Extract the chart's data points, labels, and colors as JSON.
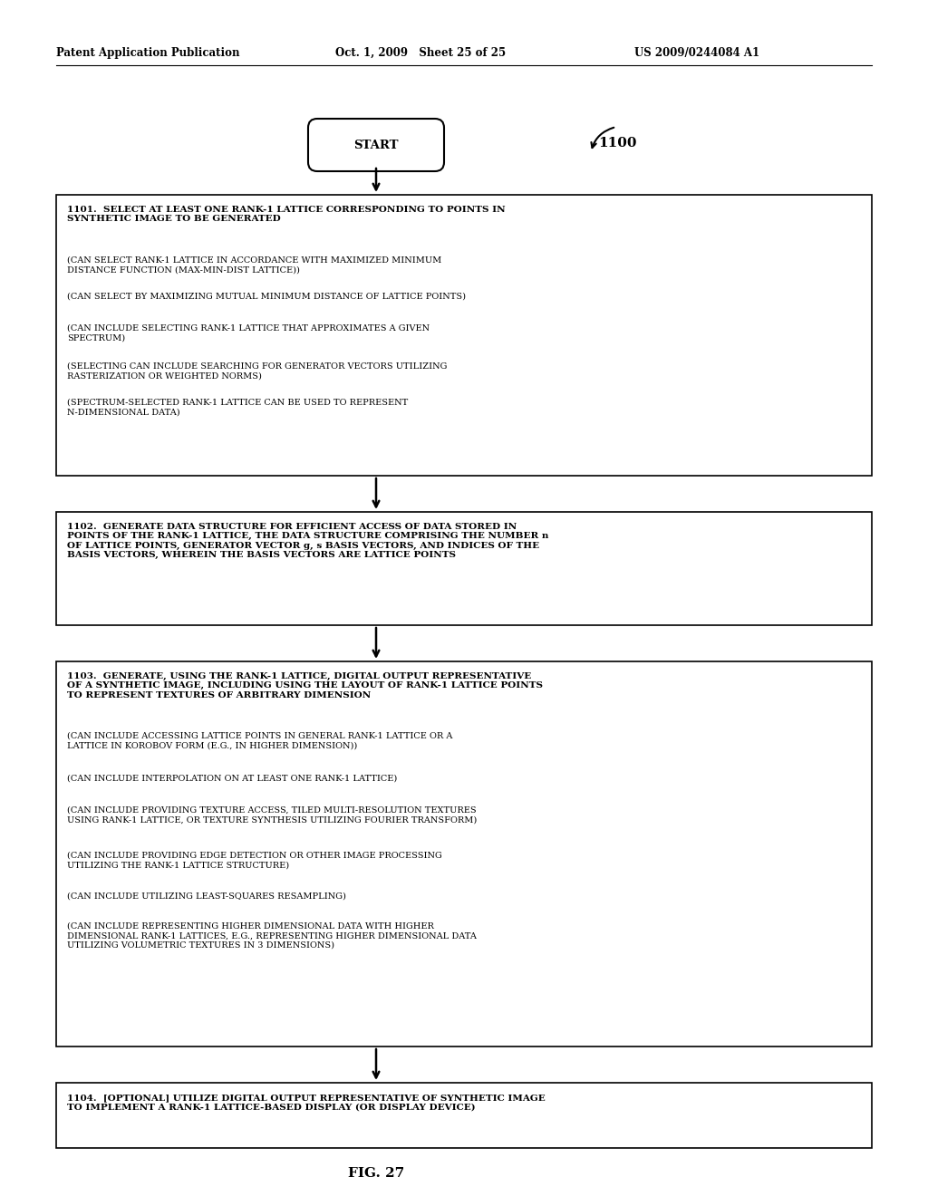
{
  "bg_color": "#ffffff",
  "header_left": "Patent Application Publication",
  "header_mid": "Oct. 1, 2009   Sheet 25 of 25",
  "header_right": "US 2009/0244084 A1",
  "fig_label": "FIG. 27",
  "diagram_label": "1100",
  "start_label": "START",
  "box1_title": "1101.  SELECT AT LEAST ONE RANK-1 LATTICE CORRESPONDING TO POINTS IN\nSYNTHETIC IMAGE TO BE GENERATED",
  "box1_sub": [
    "(CAN SELECT RANK-1 LATTICE IN ACCORDANCE WITH MAXIMIZED MINIMUM\nDISTANCE FUNCTION (MAX-MIN-DIST LATTICE))",
    "(CAN SELECT BY MAXIMIZING MUTUAL MINIMUM DISTANCE OF LATTICE POINTS)",
    "(CAN INCLUDE SELECTING RANK-1 LATTICE THAT APPROXIMATES A GIVEN\nSPECTRUM)",
    "(SELECTING CAN INCLUDE SEARCHING FOR GENERATOR VECTORS UTILIZING\nRASTERIZATION OR WEIGHTED NORMS)",
    "(SPECTRUM-SELECTED RANK-1 LATTICE CAN BE USED TO REPRESENT\nN-DIMENSIONAL DATA)"
  ],
  "box2_text": "1102.  GENERATE DATA STRUCTURE FOR EFFICIENT ACCESS OF DATA STORED IN\nPOINTS OF THE RANK-1 LATTICE, THE DATA STRUCTURE COMPRISING THE NUMBER n\nOF LATTICE POINTS, GENERATOR VECTOR g, s BASIS VECTORS, AND INDICES OF THE\nBASIS VECTORS, WHEREIN THE BASIS VECTORS ARE LATTICE POINTS",
  "box3_title": "1103.  GENERATE, USING THE RANK-1 LATTICE, DIGITAL OUTPUT REPRESENTATIVE\nOF A SYNTHETIC IMAGE, INCLUDING USING THE LAYOUT OF RANK-1 LATTICE POINTS\nTO REPRESENT TEXTURES OF ARBITRARY DIMENSION",
  "box3_sub": [
    "(CAN INCLUDE ACCESSING LATTICE POINTS IN GENERAL RANK-1 LATTICE OR A\nLATTICE IN KOROBOV FORM (E.G., IN HIGHER DIMENSION))",
    "(CAN INCLUDE INTERPOLATION ON AT LEAST ONE RANK-1 LATTICE)",
    "(CAN INCLUDE PROVIDING TEXTURE ACCESS, TILED MULTI-RESOLUTION TEXTURES\nUSING RANK-1 LATTICE, OR TEXTURE SYNTHESIS UTILIZING FOURIER TRANSFORM)",
    "(CAN INCLUDE PROVIDING EDGE DETECTION OR OTHER IMAGE PROCESSING\nUTILIZING THE RANK-1 LATTICE STRUCTURE)",
    "(CAN INCLUDE UTILIZING LEAST-SQUARES RESAMPLING)",
    "(CAN INCLUDE REPRESENTING HIGHER DIMENSIONAL DATA WITH HIGHER\nDIMENSIONAL RANK-1 LATTICES, E.G., REPRESENTING HIGHER DIMENSIONAL DATA\nUTILIZING VOLUMETRIC TEXTURES IN 3 DIMENSIONS)"
  ],
  "box4_text": "1104.  [OPTIONAL] UTILIZE DIGITAL OUTPUT REPRESENTATIVE OF SYNTHETIC IMAGE\nTO IMPLEMENT A RANK-1 LATTICE-BASED DISPLAY (OR DISPLAY DEVICE)"
}
